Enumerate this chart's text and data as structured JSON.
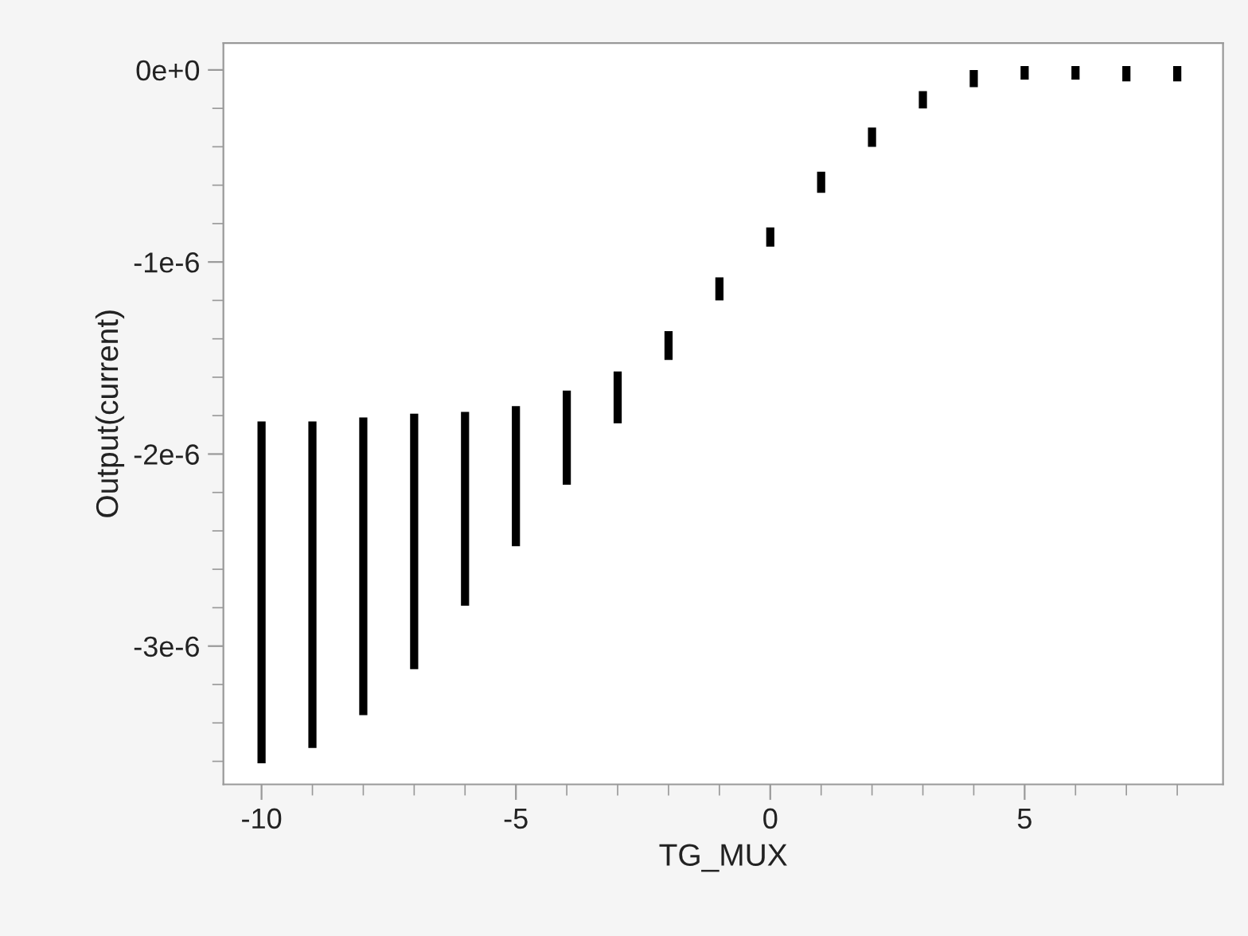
{
  "chart_data": {
    "type": "bar",
    "xlabel": "TG_MUX",
    "ylabel": "Output(current)",
    "x": [
      -10,
      -9,
      -8,
      -7,
      -6,
      -5,
      -4,
      -3,
      -2,
      -1,
      0,
      1,
      2,
      3,
      4,
      5,
      6,
      7,
      8
    ],
    "base": [
      -3.61e-06,
      -3.53e-06,
      -3.36e-06,
      -3.12e-06,
      -2.79e-06,
      -2.48e-06,
      -2.16e-06,
      -1.84e-06,
      -1.51e-06,
      -1.2e-06,
      -9.2e-07,
      -6.4e-07,
      -4e-07,
      -2e-07,
      -9e-08,
      -5e-08,
      -5e-08,
      -6e-08,
      -6e-08
    ],
    "values": [
      1.78e-06,
      1.7e-06,
      1.55e-06,
      1.33e-06,
      1.01e-06,
      7.3e-07,
      4.9e-07,
      2.7e-07,
      1.5e-07,
      1.2e-07,
      1e-07,
      1.1e-07,
      1e-07,
      9e-08,
      9e-08,
      7e-08,
      7e-08,
      8e-08,
      8e-08
    ],
    "color": "#000000",
    "xlim": [
      -10.75,
      8.9
    ],
    "ylim": [
      -3.72e-06,
      1.4e-07
    ],
    "xticks": [
      -10,
      -5,
      0,
      5
    ],
    "yticks": [
      {
        "value": 0,
        "label": "0e+0"
      },
      {
        "value": -1e-06,
        "label": "-1e-6"
      },
      {
        "value": -2e-06,
        "label": "-2e-6"
      },
      {
        "value": -3e-06,
        "label": "-3e-6"
      }
    ],
    "grid": false,
    "legend": false
  }
}
